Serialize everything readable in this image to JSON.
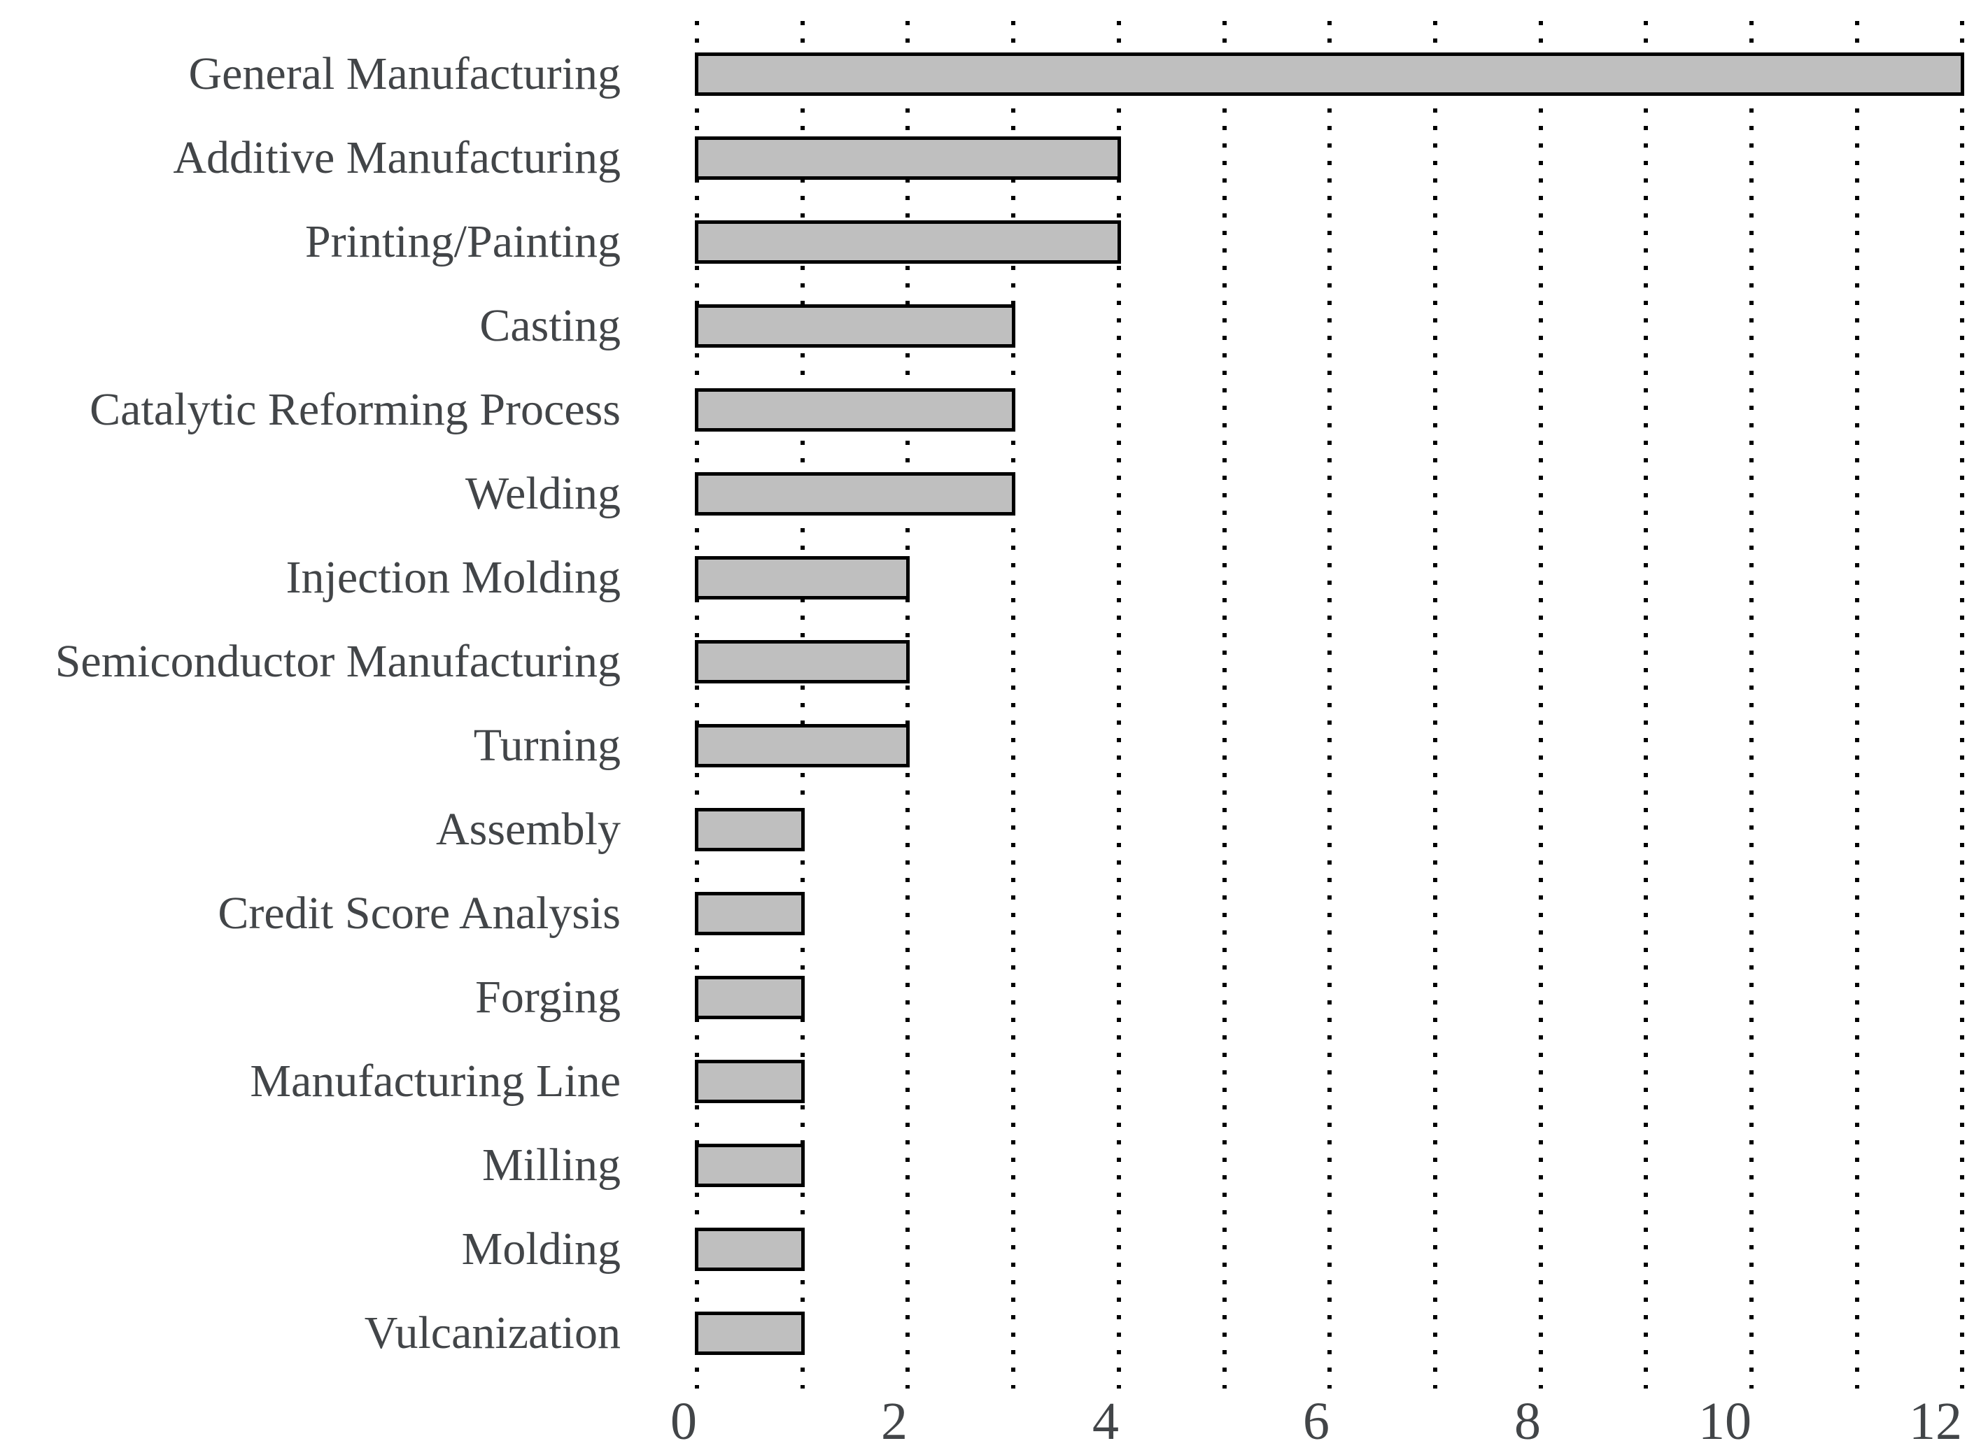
{
  "chart_data": {
    "type": "bar",
    "orientation": "horizontal",
    "categories": [
      "General Manufacturing",
      "Additive Manufacturing",
      "Printing/Painting",
      "Casting",
      "Catalytic Reforming Process",
      "Welding",
      "Injection Molding",
      "Semiconductor Manufacturing",
      "Turning",
      "Assembly",
      "Credit Score Analysis",
      "Forging",
      "Manufacturing Line",
      "Milling",
      "Molding",
      "Vulcanization"
    ],
    "values": [
      12,
      4,
      4,
      3,
      3,
      3,
      2,
      2,
      2,
      1,
      1,
      1,
      1,
      1,
      1,
      1
    ],
    "x_ticks": [
      0,
      2,
      4,
      6,
      8,
      10,
      12
    ],
    "xlim": [
      0,
      12
    ],
    "xlabel": "",
    "ylabel": "",
    "grid": {
      "show": true,
      "interval": 1,
      "line_style": "dotted",
      "direction": "vertical"
    },
    "legend_position": "none",
    "colors": {
      "bar_fill": "#bfbfbf",
      "bar_border": "#000000",
      "gridline": "#000000",
      "text": "#424548",
      "background": "#ffffff"
    }
  }
}
